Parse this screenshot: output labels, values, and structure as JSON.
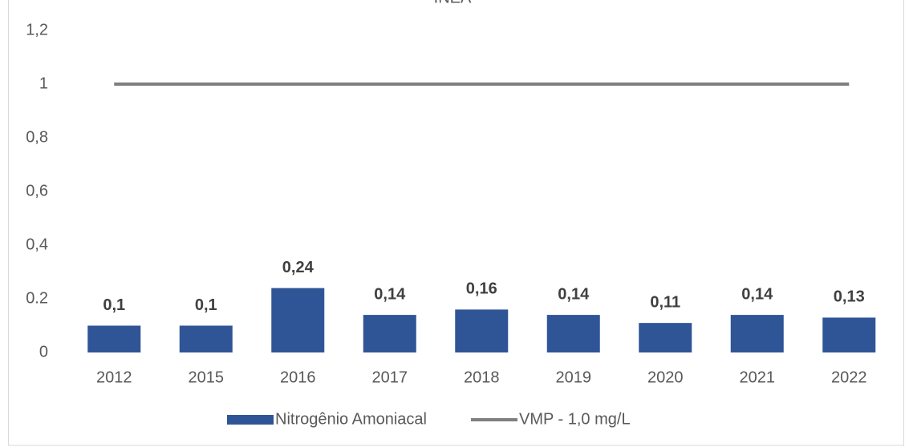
{
  "chart_data": {
    "type": "bar",
    "title": "INEA",
    "categories": [
      "2012",
      "2015",
      "2016",
      "2017",
      "2018",
      "2019",
      "2020",
      "2021",
      "2022"
    ],
    "series": [
      {
        "name": "Nitrogênio Amoniacal",
        "type": "bar",
        "color": "#2f5597",
        "values": [
          0.1,
          0.1,
          0.24,
          0.14,
          0.16,
          0.14,
          0.11,
          0.14,
          0.13
        ],
        "value_labels": [
          "0,1",
          "0,1",
          "0,24",
          "0,14",
          "0,16",
          "0,14",
          "0,11",
          "0,14",
          "0,13"
        ]
      },
      {
        "name": "VMP - 1,0 mg/L",
        "type": "line",
        "color": "#7f7f7f",
        "values": [
          1,
          1,
          1,
          1,
          1,
          1,
          1,
          1,
          1
        ]
      }
    ],
    "ylim": [
      0,
      1.2
    ],
    "yticks": [
      0,
      0.2,
      {
        "value": 0.4,
        "label": "0,4"
      },
      {
        "value": 0.6,
        "label": "0,6"
      },
      {
        "value": 0.8,
        "label": "0,8"
      },
      1,
      {
        "value": 1.2,
        "label": "1,2"
      }
    ],
    "grid": false,
    "legend": "bottom"
  }
}
